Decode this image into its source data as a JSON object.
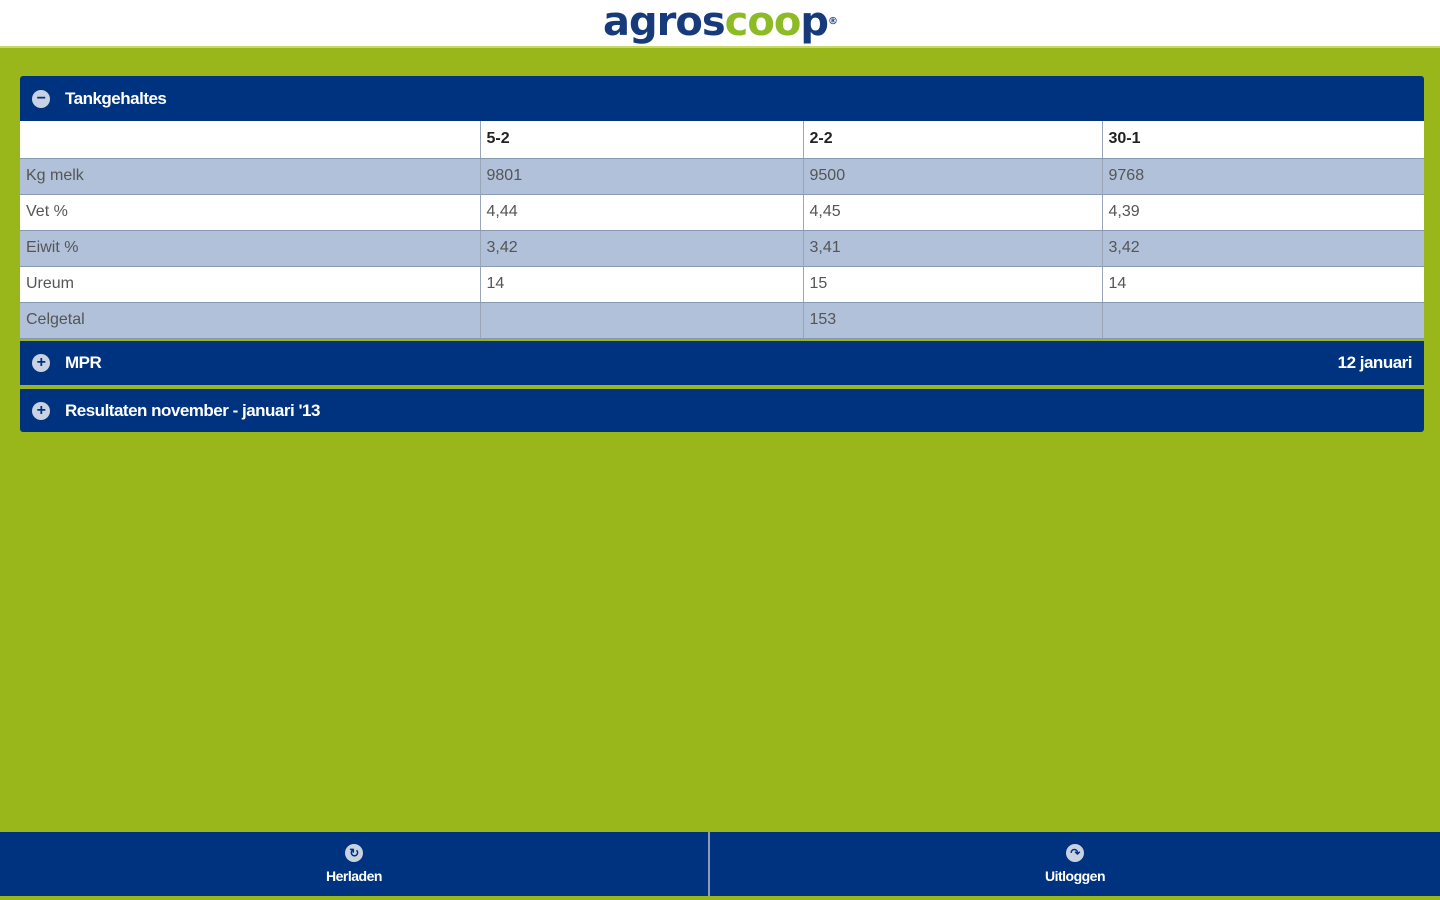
{
  "header": {
    "logo": "agroscoop",
    "logo_part1": "agros",
    "logo_part2": "coo",
    "logo_part3": "p",
    "registered": "®"
  },
  "colors": {
    "navy": "#00337f",
    "green": "#99b71a",
    "alt_row": "#b0c1d9"
  },
  "tank": {
    "title": "Tankgehaltes",
    "icon": "minus-icon",
    "columns": [
      "",
      "5-2",
      "2-2",
      "30-1"
    ],
    "rows": [
      {
        "label": "Kg melk",
        "values": [
          "9801",
          "9500",
          "9768"
        ]
      },
      {
        "label": "Vet %",
        "values": [
          "4,44",
          "4,45",
          "4,39"
        ]
      },
      {
        "label": "Eiwit %",
        "values": [
          "3,42",
          "3,41",
          "3,42"
        ]
      },
      {
        "label": "Ureum",
        "values": [
          "14",
          "15",
          "14"
        ]
      },
      {
        "label": "Celgetal",
        "values": [
          "",
          "153",
          ""
        ]
      }
    ]
  },
  "mpr": {
    "title": "MPR",
    "date": "12 januari",
    "icon": "plus-icon"
  },
  "results": {
    "title": "Resultaten november - januari '13",
    "icon": "plus-icon"
  },
  "footer": {
    "reload": "Herladen",
    "reload_icon": "refresh-icon",
    "logout": "Uitloggen",
    "logout_icon": "logout-icon"
  }
}
